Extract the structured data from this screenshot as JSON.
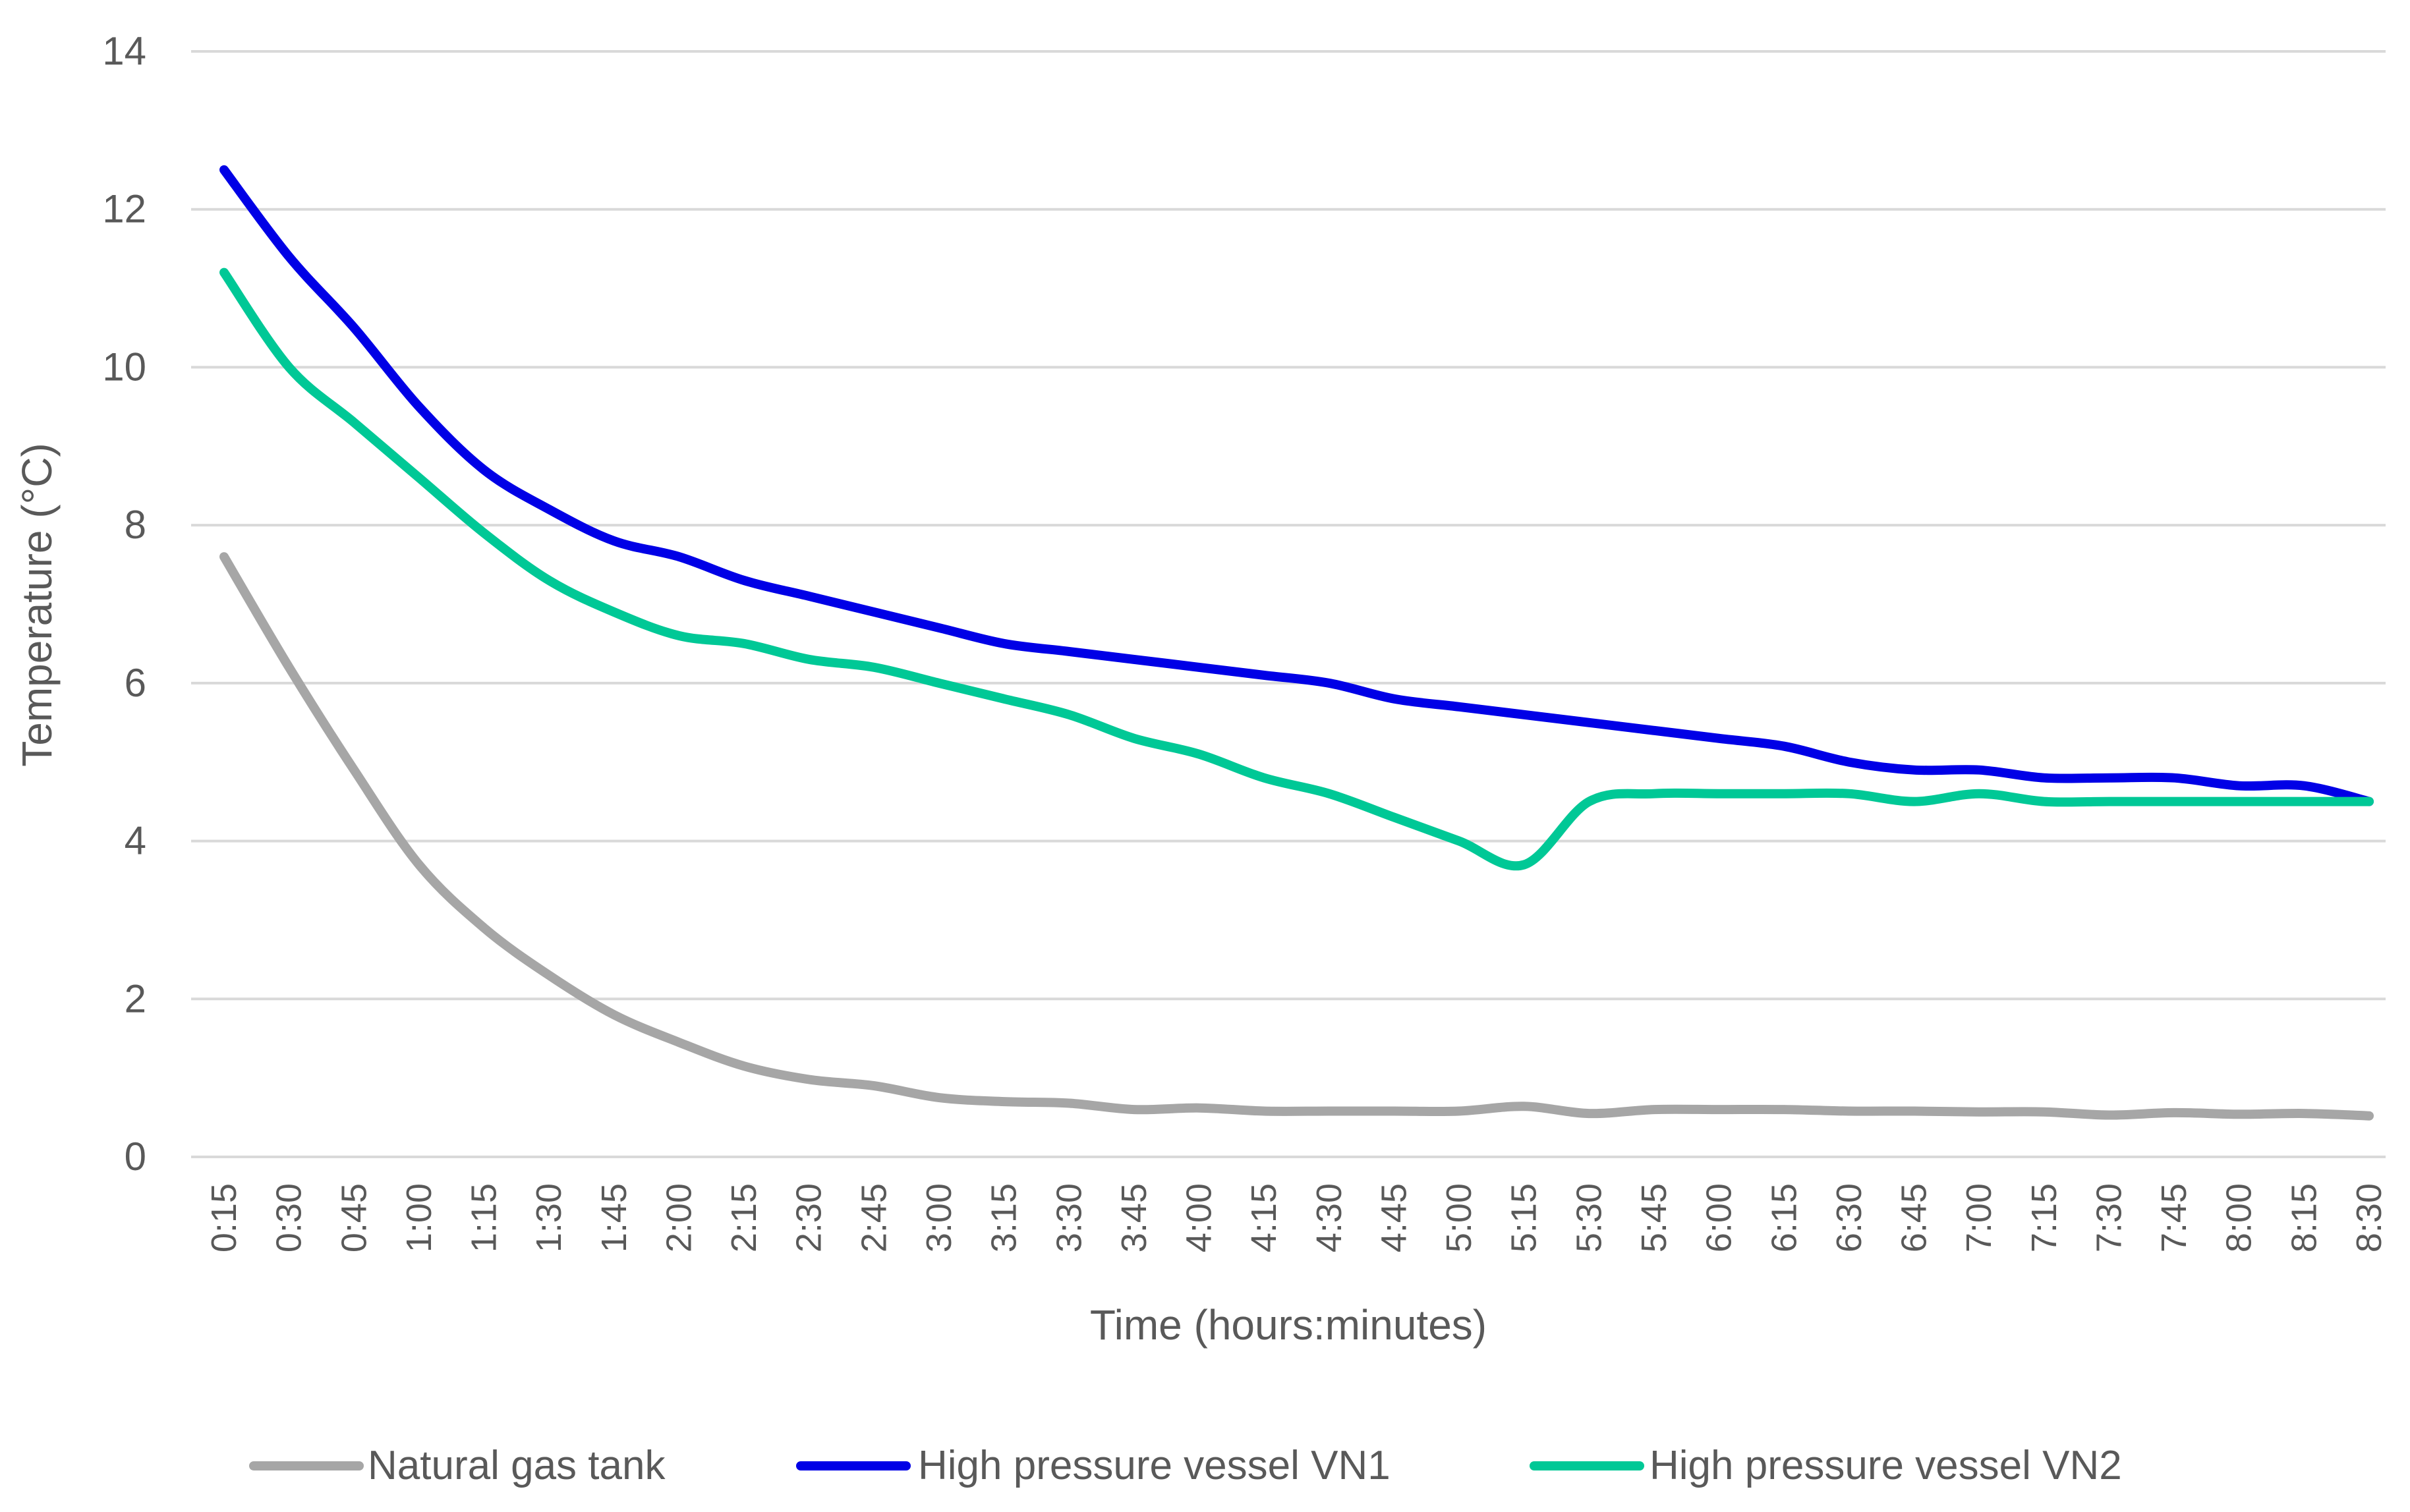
{
  "chart_data": {
    "type": "line",
    "title": "",
    "xlabel": "Time (hours:minutes)",
    "ylabel": "Temperature (°C)",
    "ylim": [
      0,
      14
    ],
    "yticks": [
      "0",
      "2",
      "4",
      "6",
      "8",
      "10",
      "12",
      "14"
    ],
    "grid": true,
    "legend_position": "bottom",
    "categories": [
      "0:15",
      "0:30",
      "0:45",
      "1:00",
      "1:15",
      "1:30",
      "1:45",
      "2:00",
      "2:15",
      "2:30",
      "2:45",
      "3:00",
      "3:15",
      "3:30",
      "3:45",
      "4:00",
      "4:15",
      "4:30",
      "4:45",
      "5:00",
      "5:15",
      "5:30",
      "5:45",
      "6:00",
      "6:15",
      "6:30",
      "6:45",
      "7:00",
      "7:15",
      "7:30",
      "7:45",
      "8:00",
      "8:15",
      "8:30"
    ],
    "series": [
      {
        "name": "Natural gas tank",
        "color": "#A6A6A6",
        "values": [
          7.6,
          6.2,
          4.9,
          3.7,
          2.9,
          2.3,
          1.8,
          1.45,
          1.15,
          0.98,
          0.9,
          0.75,
          0.7,
          0.68,
          0.6,
          0.62,
          0.58,
          0.58,
          0.58,
          0.58,
          0.64,
          0.55,
          0.6,
          0.6,
          0.6,
          0.58,
          0.58,
          0.57,
          0.57,
          0.53,
          0.56,
          0.54,
          0.55,
          0.52
        ]
      },
      {
        "name": "High pressure vessel VN1",
        "color": "#0000E6",
        "values": [
          12.5,
          11.4,
          10.5,
          9.5,
          8.7,
          8.2,
          7.8,
          7.6,
          7.3,
          7.1,
          6.9,
          6.7,
          6.5,
          6.4,
          6.3,
          6.2,
          6.1,
          6.0,
          5.8,
          5.7,
          5.6,
          5.5,
          5.4,
          5.3,
          5.2,
          5.0,
          4.9,
          4.9,
          4.8,
          4.8,
          4.8,
          4.7,
          4.7,
          4.5
        ]
      },
      {
        "name": "High pressure vessel VN2",
        "color": "#00C896",
        "values": [
          11.2,
          10.0,
          9.3,
          8.6,
          7.9,
          7.3,
          6.9,
          6.6,
          6.5,
          6.3,
          6.2,
          6.0,
          5.8,
          5.6,
          5.3,
          5.1,
          4.8,
          4.6,
          4.3,
          4.0,
          3.7,
          4.5,
          4.6,
          4.6,
          4.6,
          4.6,
          4.5,
          4.6,
          4.5,
          4.5,
          4.5,
          4.5,
          4.5,
          4.5
        ]
      }
    ]
  }
}
